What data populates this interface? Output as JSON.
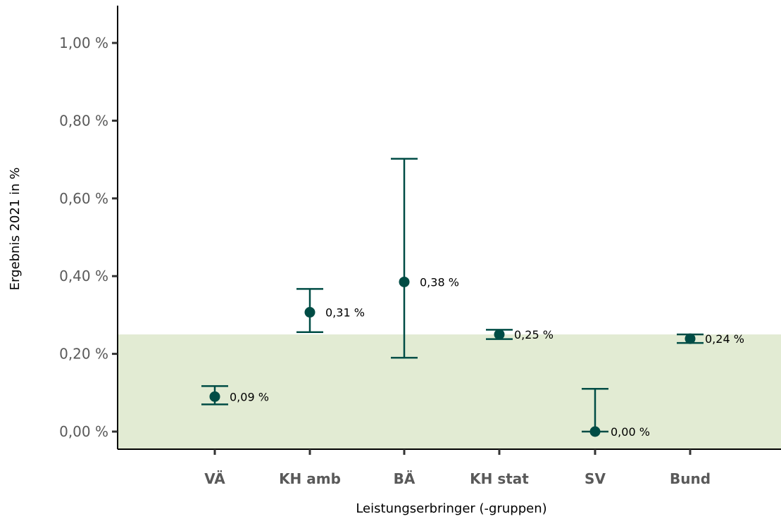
{
  "chart_data": {
    "type": "scatter",
    "xlabel": "Leistungserbringer (-gruppen)",
    "ylabel": "Ergebnis 2021 in %",
    "ylim": [
      0,
      1.0
    ],
    "yticks": [
      {
        "value": 0.0,
        "label": "0,00 %"
      },
      {
        "value": 0.2,
        "label": "0,20 %"
      },
      {
        "value": 0.4,
        "label": "0,40 %"
      },
      {
        "value": 0.6,
        "label": "0,60 %"
      },
      {
        "value": 0.8,
        "label": "0,80 %"
      },
      {
        "value": 1.0,
        "label": "1,00 %"
      }
    ],
    "categories": [
      "VÄ",
      "KH amb",
      "BÄ",
      "KH stat",
      "SV",
      "Bund"
    ],
    "points": [
      {
        "category": "VÄ",
        "value": 0.09,
        "lower": 0.07,
        "upper": 0.117,
        "label": "0,09 %"
      },
      {
        "category": "KH amb",
        "value": 0.307,
        "lower": 0.256,
        "upper": 0.367,
        "label": "0,31 %"
      },
      {
        "category": "BÄ",
        "value": 0.385,
        "lower": 0.19,
        "upper": 0.702,
        "label": "0,38 %"
      },
      {
        "category": "KH stat",
        "value": 0.25,
        "lower": 0.238,
        "upper": 0.262,
        "label": "0,25 %"
      },
      {
        "category": "SV",
        "value": 0.0,
        "lower": 0.0,
        "upper": 0.11,
        "label": "0,00 %"
      },
      {
        "category": "Bund",
        "value": 0.239,
        "lower": 0.228,
        "upper": 0.25,
        "label": "0,24 %"
      }
    ],
    "reference_band": {
      "from": 0,
      "to": 0.25
    },
    "grid": false,
    "colors": {
      "point": "#004c45",
      "band": "#e2ebd3",
      "axis": "#000000"
    }
  }
}
